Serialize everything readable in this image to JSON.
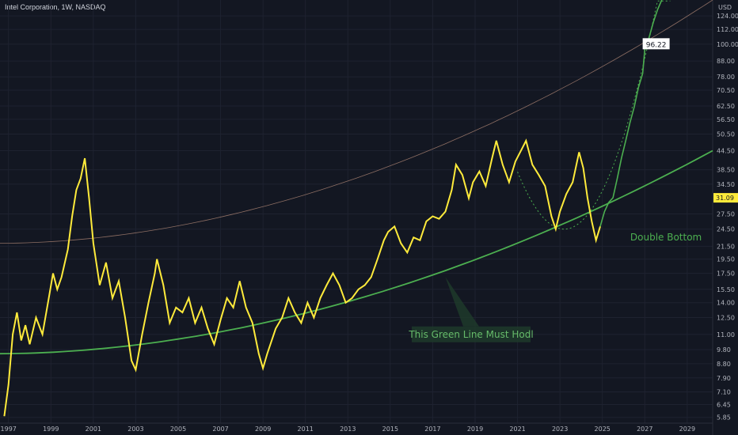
{
  "header": {
    "title": "Intel Corporation, 1W, NASDAQ"
  },
  "currency": "USD",
  "colors": {
    "background": "#131722",
    "price": "#ffeb3b",
    "projection": "#4caf50",
    "support": "#4caf50",
    "resistance": "#8d6e63",
    "price_label_bg": "#ffeb3b",
    "text": "#b2b5be"
  },
  "chart_data": {
    "type": "line",
    "yscale": "log",
    "ylim": [
      5.6,
      140
    ],
    "xlim": [
      1996.6,
      2030.2
    ],
    "y_ticks": [
      "124.00",
      "112.00",
      "100.00",
      "88.00",
      "78.00",
      "70.50",
      "62.50",
      "56.50",
      "50.50",
      "44.50",
      "38.50",
      "34.50",
      "27.50",
      "24.50",
      "21.50",
      "19.50",
      "17.50",
      "15.50",
      "14.00",
      "12.50",
      "11.00",
      "9.80",
      "8.80",
      "7.90",
      "7.10",
      "6.45",
      "5.85"
    ],
    "x_ticks": [
      "1997",
      "1999",
      "2001",
      "2003",
      "2005",
      "2007",
      "2009",
      "2011",
      "2013",
      "2015",
      "2017",
      "2019",
      "2021",
      "2023",
      "2025",
      "2027",
      "2029"
    ],
    "current_price": "31.09",
    "projection_price_label": "96.22",
    "series": [
      {
        "points": [
          [
            1996.8,
            5.9
          ],
          [
            1997.0,
            7.5
          ],
          [
            1997.2,
            11
          ],
          [
            1997.4,
            13
          ],
          [
            1997.6,
            10.5
          ],
          [
            1997.8,
            11.8
          ],
          [
            1998.0,
            10.2
          ],
          [
            1998.3,
            12.5
          ],
          [
            1998.6,
            11
          ],
          [
            1998.9,
            14.5
          ],
          [
            1999.1,
            17.5
          ],
          [
            1999.3,
            15.5
          ],
          [
            1999.5,
            17
          ],
          [
            1999.8,
            21
          ],
          [
            2000.0,
            27
          ],
          [
            2000.2,
            33
          ],
          [
            2000.4,
            36
          ],
          [
            2000.6,
            42
          ],
          [
            2000.8,
            31
          ],
          [
            2001.0,
            22
          ],
          [
            2001.3,
            16
          ],
          [
            2001.6,
            19
          ],
          [
            2001.9,
            14.5
          ],
          [
            2002.2,
            16.5
          ],
          [
            2002.5,
            12.5
          ],
          [
            2002.8,
            9
          ],
          [
            2003.0,
            8.4
          ],
          [
            2003.3,
            11
          ],
          [
            2003.6,
            14
          ],
          [
            2003.9,
            17.5
          ],
          [
            2004.0,
            19.5
          ],
          [
            2004.3,
            16
          ],
          [
            2004.6,
            12
          ],
          [
            2004.9,
            13.5
          ],
          [
            2005.2,
            13
          ],
          [
            2005.5,
            14.5
          ],
          [
            2005.8,
            12
          ],
          [
            2006.1,
            13.5
          ],
          [
            2006.4,
            11.5
          ],
          [
            2006.7,
            10.2
          ],
          [
            2007.0,
            12.3
          ],
          [
            2007.3,
            14.5
          ],
          [
            2007.6,
            13.5
          ],
          [
            2007.9,
            16.5
          ],
          [
            2008.2,
            13.5
          ],
          [
            2008.5,
            12
          ],
          [
            2008.8,
            9.5
          ],
          [
            2009.0,
            8.5
          ],
          [
            2009.2,
            9.5
          ],
          [
            2009.6,
            11.5
          ],
          [
            2009.9,
            12.5
          ],
          [
            2010.2,
            14.5
          ],
          [
            2010.5,
            13
          ],
          [
            2010.8,
            12
          ],
          [
            2011.1,
            14
          ],
          [
            2011.4,
            12.5
          ],
          [
            2011.7,
            14.5
          ],
          [
            2012.0,
            16
          ],
          [
            2012.3,
            17.5
          ],
          [
            2012.6,
            16
          ],
          [
            2012.9,
            14
          ],
          [
            2013.2,
            14.5
          ],
          [
            2013.5,
            15.5
          ],
          [
            2013.8,
            16
          ],
          [
            2014.1,
            17
          ],
          [
            2014.4,
            19.5
          ],
          [
            2014.7,
            22.5
          ],
          [
            2014.9,
            24
          ],
          [
            2015.2,
            25
          ],
          [
            2015.5,
            22
          ],
          [
            2015.8,
            20.5
          ],
          [
            2016.1,
            23
          ],
          [
            2016.4,
            22.5
          ],
          [
            2016.7,
            26
          ],
          [
            2017.0,
            27
          ],
          [
            2017.3,
            26.5
          ],
          [
            2017.6,
            28
          ],
          [
            2017.9,
            33
          ],
          [
            2018.1,
            40
          ],
          [
            2018.4,
            37
          ],
          [
            2018.7,
            31
          ],
          [
            2018.9,
            35
          ],
          [
            2019.2,
            38
          ],
          [
            2019.5,
            34
          ],
          [
            2019.8,
            42
          ],
          [
            2020.0,
            48
          ],
          [
            2020.3,
            40
          ],
          [
            2020.6,
            35
          ],
          [
            2020.9,
            41
          ],
          [
            2021.2,
            45
          ],
          [
            2021.4,
            48
          ],
          [
            2021.7,
            40
          ],
          [
            2022.0,
            37
          ],
          [
            2022.3,
            34
          ],
          [
            2022.6,
            27
          ],
          [
            2022.8,
            24.5
          ],
          [
            2023.0,
            28
          ],
          [
            2023.3,
            32
          ],
          [
            2023.6,
            35
          ],
          [
            2023.9,
            44
          ],
          [
            2024.1,
            39
          ],
          [
            2024.3,
            31
          ],
          [
            2024.5,
            26
          ],
          [
            2024.7,
            22.5
          ],
          [
            2024.9,
            25
          ]
        ]
      },
      {
        "points": [
          [
            2024.9,
            25
          ],
          [
            2025.1,
            28
          ],
          [
            2025.3,
            30
          ],
          [
            2025.5,
            31.1
          ],
          [
            2025.7,
            36
          ],
          [
            2025.9,
            42
          ],
          [
            2026.1,
            48
          ],
          [
            2026.3,
            55
          ],
          [
            2026.5,
            62
          ],
          [
            2026.7,
            72
          ],
          [
            2026.9,
            80
          ],
          [
            2027.0,
            96.2
          ],
          [
            2027.2,
            105
          ],
          [
            2027.4,
            118
          ],
          [
            2027.6,
            130
          ],
          [
            2027.8,
            140
          ]
        ]
      }
    ],
    "support_curve": {
      "start": [
        1996.6,
        9.5
      ],
      "end": [
        2030.2,
        44.5
      ]
    },
    "resistance_curve": {
      "start": [
        1996.6,
        22
      ],
      "end": [
        2030.2,
        140
      ]
    },
    "double_bottom_arc": {
      "center_year": 2023.2,
      "bottom": 24.5
    },
    "annotations": [
      {
        "text": "This Green Line Must Hodl",
        "x": 2019.0,
        "y": 11.0
      },
      {
        "text": "Double Bottom",
        "x": 2028.0,
        "y": 22.5
      }
    ]
  }
}
